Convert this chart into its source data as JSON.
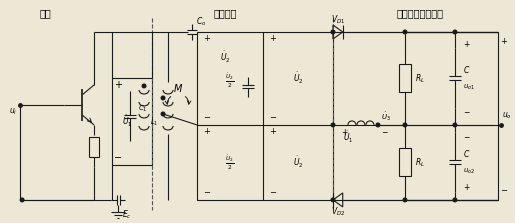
{
  "bg_color": "#ede8d5",
  "lc": "#1a1a1a",
  "lw": 0.8,
  "figsize": [
    5.15,
    2.23
  ],
  "dpi": 100,
  "labels": {
    "sec1": "放大",
    "sec2": "变换网络",
    "sec3": "平衡叠加型鉴相器",
    "Co": "$C_o$",
    "C1": "$C_1$",
    "L1": "$L_1$",
    "M": "$M$",
    "U1": "$\\dot{U}_1$",
    "U2": "$\\dot{U}_2$",
    "U2_2": "$\\frac{\\dot{U}_2}{2}$",
    "VD1": "$V_{D1}$",
    "VD2": "$V_{D2}$",
    "RL": "$R_L$",
    "C": "$C$",
    "uo1": "$u_{o1}$",
    "uo2": "$u_{o2}$",
    "uo": "$u_o$",
    "ui": "$u_i$",
    "Ec": "$E_c$",
    "U3": "$\\dot{U}_3$"
  }
}
